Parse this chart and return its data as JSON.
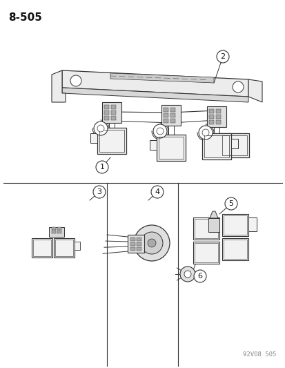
{
  "title": "8-505",
  "footer": "92V08 505",
  "bg_color": "#ffffff",
  "line_color": "#333333",
  "gray_fill": "#e8e8e8",
  "light_fill": "#f2f2f2",
  "title_fontsize": 11,
  "footer_fontsize": 6.5,
  "callout_fontsize": 8
}
